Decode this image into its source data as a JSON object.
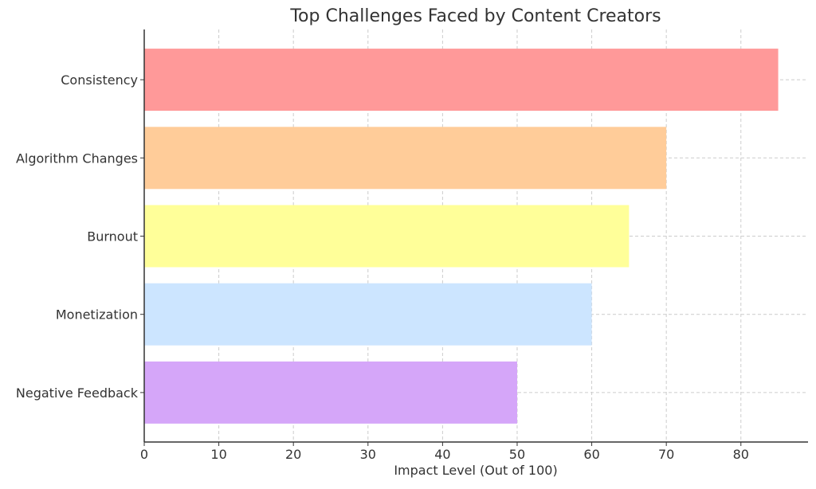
{
  "chart_data": {
    "type": "bar",
    "orientation": "horizontal",
    "title": "Top Challenges Faced by Content Creators",
    "xlabel": "Impact Level (Out of 100)",
    "ylabel": "",
    "categories": [
      "Consistency",
      "Algorithm Changes",
      "Burnout",
      "Monetization",
      "Negative Feedback"
    ],
    "values": [
      85,
      70,
      65,
      60,
      50
    ],
    "colors": [
      "#ff9999",
      "#ffcc99",
      "#ffff99",
      "#cce5ff",
      "#d5a6f9"
    ],
    "xlim": [
      0,
      89
    ],
    "xticks": [
      0,
      10,
      20,
      30,
      40,
      50,
      60,
      70,
      80
    ],
    "grid": true
  }
}
